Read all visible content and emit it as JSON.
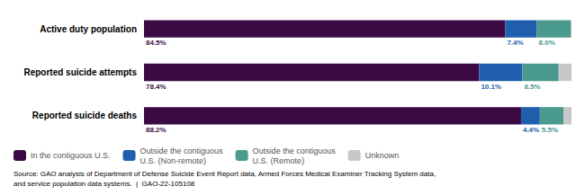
{
  "chart_data": {
    "type": "bar",
    "orientation": "horizontal",
    "stacked": true,
    "categories": [
      "Active duty population",
      "Reported suicide attempts",
      "Reported suicide deaths"
    ],
    "series": [
      {
        "name": "In the contiguous U.S.",
        "color": "#3b0a45",
        "values": [
          84.5,
          78.4,
          88.2
        ],
        "value_labels": [
          "84.5%",
          "78.4%",
          "88.2%"
        ]
      },
      {
        "name": "Outside the contiguous\nU.S. (Non-remote)",
        "color": "#1f5fad",
        "values": [
          7.4,
          10.1,
          4.4
        ],
        "value_labels": [
          "7.4%",
          "10.1%",
          "4.4%"
        ]
      },
      {
        "name": "Outside the contiguous\nU.S. (Remote)",
        "color": "#4a9a8e",
        "values": [
          8.0,
          8.5,
          5.5
        ],
        "value_labels": [
          "8.0%",
          "8.5%",
          "5.5%"
        ]
      },
      {
        "name": "Unknown",
        "color": "#c8c8c8",
        "values": [
          0.1,
          3.0,
          1.9
        ]
      }
    ],
    "xlim": [
      0,
      100
    ],
    "data_labels": true,
    "tick_labels": "y",
    "grid": false,
    "legend": "bottom",
    "annotations": [
      "Source: GAO analysis of Department of Defense Suicide Event Report data, Armed Forces Medical Examiner Tracking System data,\nand service population data systems.  |  GAO-22-105108"
    ]
  }
}
